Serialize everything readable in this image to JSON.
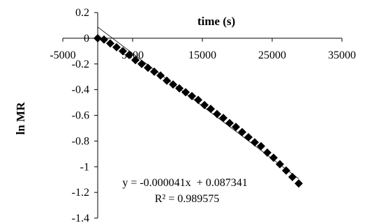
{
  "chart_data": {
    "type": "scatter",
    "xlabel": "time (s)",
    "ylabel": "ln MR",
    "xlim": [
      -5000,
      35000
    ],
    "ylim": [
      -1.4,
      0.2
    ],
    "x_ticks": [
      "-5000",
      "5000",
      "15000",
      "25000",
      "35000"
    ],
    "y_ticks": [
      "0.2",
      "0",
      "-0.2",
      "-0.4",
      "-0.6",
      "-0.8",
      "-1",
      "-1.2",
      "-1.4"
    ],
    "x_tick_values": [
      -5000,
      5000,
      15000,
      25000,
      35000
    ],
    "y_tick_values": [
      0.2,
      0,
      -0.2,
      -0.4,
      -0.6,
      -0.8,
      -1,
      -1.2,
      -1.4
    ],
    "grid": false,
    "legend": "none",
    "marker": "diamond",
    "marker_color": "#000000",
    "series": [
      {
        "x": [
          0,
          900,
          1800,
          2700,
          3600,
          4500,
          5400,
          6300,
          7200,
          8100,
          9000,
          9900,
          10800,
          11700,
          12600,
          13500,
          14400,
          15300,
          16200,
          17100,
          18000,
          18900,
          19800,
          20700,
          21600,
          22500,
          23400,
          24300,
          25200,
          26100,
          27000,
          27900,
          28800
        ],
        "y": [
          0.0,
          -0.01,
          -0.04,
          -0.07,
          -0.1,
          -0.13,
          -0.17,
          -0.2,
          -0.23,
          -0.26,
          -0.29,
          -0.33,
          -0.36,
          -0.39,
          -0.42,
          -0.45,
          -0.48,
          -0.52,
          -0.55,
          -0.59,
          -0.62,
          -0.66,
          -0.69,
          -0.73,
          -0.77,
          -0.81,
          -0.84,
          -0.89,
          -0.93,
          -0.98,
          -1.03,
          -1.08,
          -1.13
        ]
      }
    ],
    "trendline": {
      "slope": -4.1e-05,
      "intercept": 0.087341,
      "x_range": [
        0,
        28800
      ]
    },
    "annotations": [
      "y = -0.000041x  + 0.087341",
      "R² = 0.989575"
    ]
  }
}
